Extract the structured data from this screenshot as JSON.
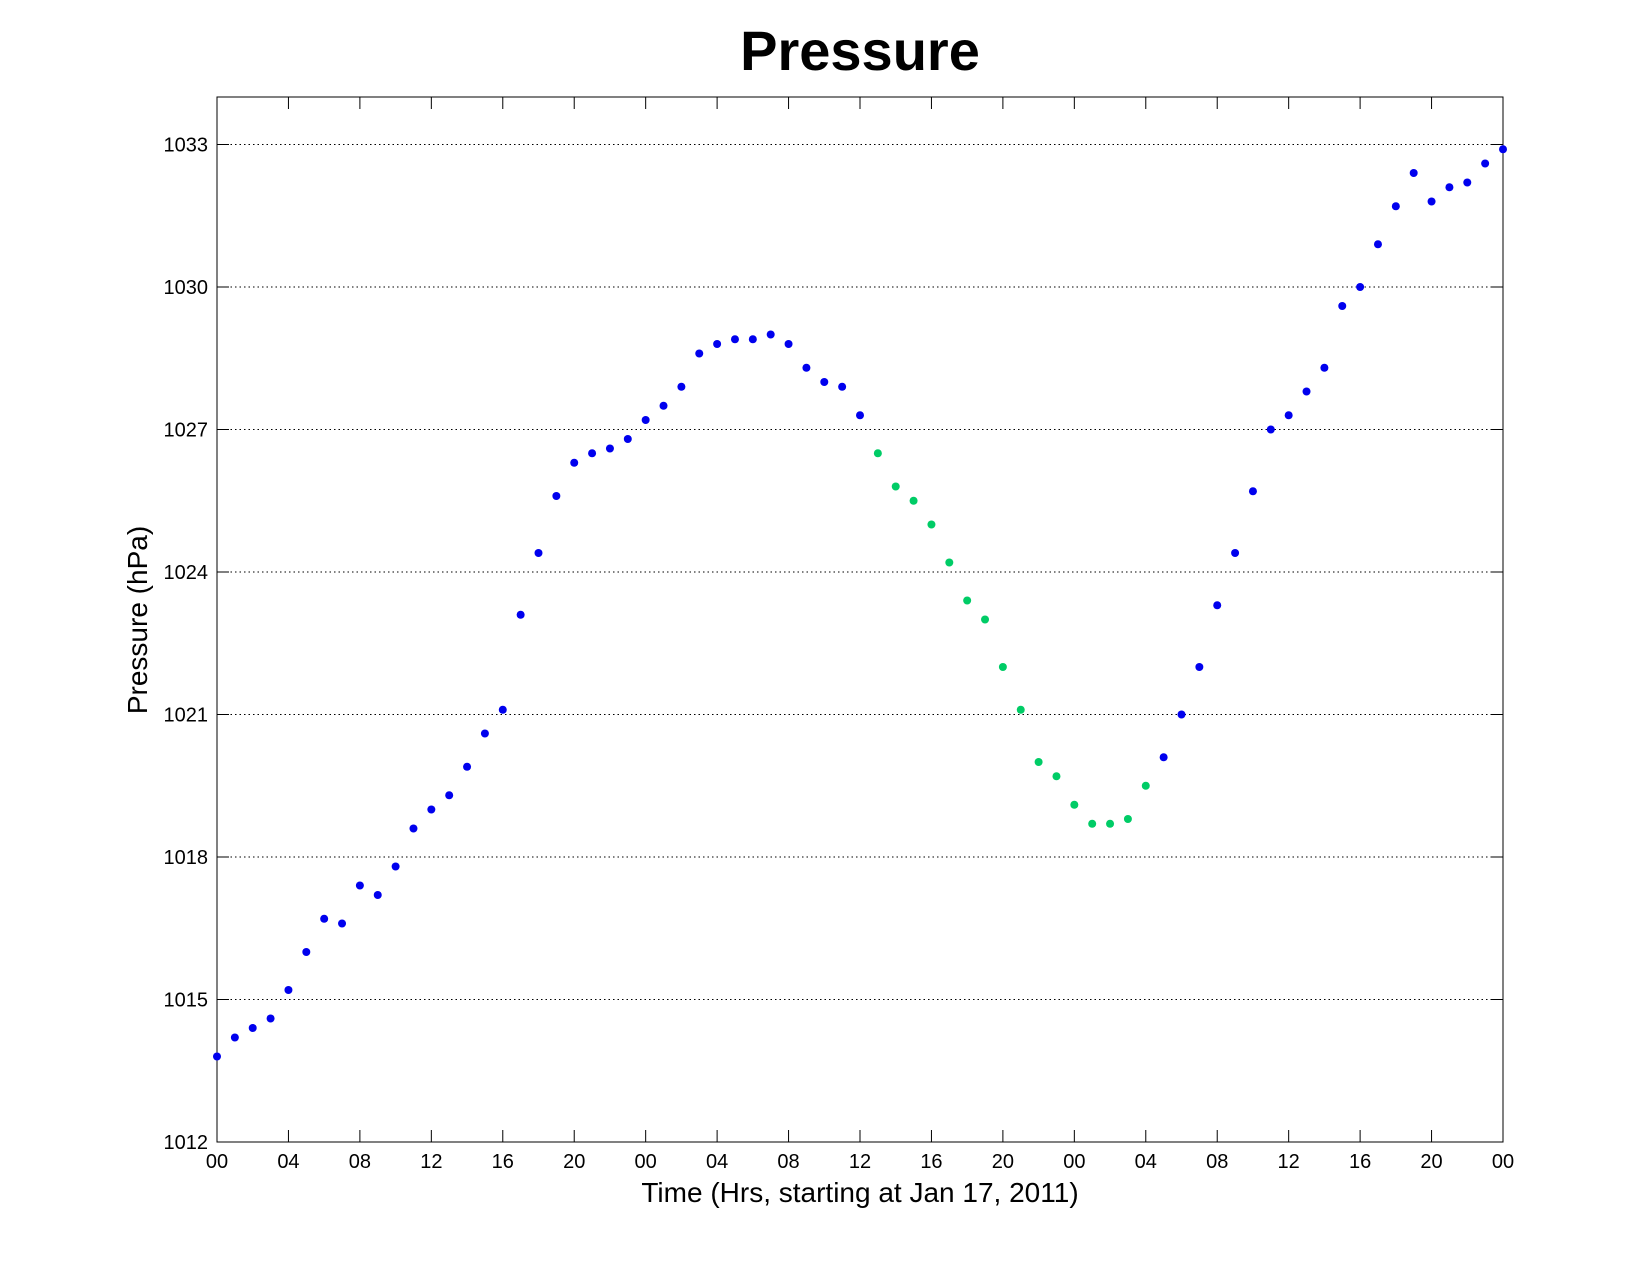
{
  "chart_data": {
    "type": "scatter",
    "title": "Pressure",
    "xlabel": "Time (Hrs, starting at Jan 17, 2011)",
    "ylabel": "Pressure (hPa)",
    "xlim": [
      0,
      72
    ],
    "ylim": [
      1012,
      1034
    ],
    "yticks": [
      1012,
      1015,
      1018,
      1021,
      1024,
      1027,
      1030,
      1033
    ],
    "xticks": [
      0,
      4,
      8,
      12,
      16,
      20,
      24,
      28,
      32,
      36,
      40,
      44,
      48,
      52,
      56,
      60,
      64,
      68,
      72
    ],
    "xtick_labels": [
      "00",
      "04",
      "08",
      "12",
      "16",
      "20",
      "00",
      "04",
      "08",
      "12",
      "16",
      "20",
      "00",
      "04",
      "08",
      "12",
      "16",
      "20",
      "00"
    ],
    "ygrid": true,
    "xgrid": false,
    "series": [
      {
        "color": "#0000ee",
        "points": [
          [
            0,
            1013.8
          ],
          [
            1,
            1014.2
          ],
          [
            2,
            1014.4
          ],
          [
            3,
            1014.6
          ],
          [
            4,
            1015.2
          ],
          [
            5,
            1016.0
          ],
          [
            6,
            1016.7
          ],
          [
            7,
            1016.6
          ],
          [
            8,
            1017.4
          ],
          [
            9,
            1017.2
          ],
          [
            10,
            1017.8
          ],
          [
            11,
            1018.6
          ],
          [
            12,
            1019.0
          ],
          [
            13,
            1019.3
          ],
          [
            14,
            1019.9
          ],
          [
            15,
            1020.6
          ],
          [
            16,
            1021.1
          ],
          [
            17,
            1023.1
          ],
          [
            18,
            1024.4
          ],
          [
            19,
            1025.6
          ],
          [
            20,
            1026.3
          ],
          [
            21,
            1026.5
          ],
          [
            22,
            1026.6
          ],
          [
            23,
            1026.8
          ],
          [
            24,
            1027.2
          ],
          [
            25,
            1027.5
          ],
          [
            26,
            1027.9
          ],
          [
            27,
            1028.6
          ],
          [
            28,
            1028.8
          ],
          [
            29,
            1028.9
          ],
          [
            30,
            1028.9
          ],
          [
            31,
            1029.0
          ],
          [
            32,
            1028.8
          ],
          [
            33,
            1028.3
          ],
          [
            34,
            1028.0
          ],
          [
            35,
            1027.9
          ],
          [
            36,
            1027.3
          ],
          [
            53,
            1020.1
          ],
          [
            54,
            1021.0
          ],
          [
            55,
            1022.0
          ],
          [
            56,
            1023.3
          ],
          [
            57,
            1024.4
          ],
          [
            58,
            1025.7
          ],
          [
            59,
            1027.0
          ],
          [
            60,
            1027.3
          ],
          [
            61,
            1027.8
          ],
          [
            62,
            1028.3
          ],
          [
            63,
            1029.6
          ],
          [
            64,
            1030.0
          ],
          [
            65,
            1030.9
          ],
          [
            66,
            1031.7
          ],
          [
            67,
            1032.4
          ],
          [
            68,
            1031.8
          ],
          [
            69,
            1032.1
          ],
          [
            70,
            1032.2
          ],
          [
            71,
            1032.6
          ],
          [
            72,
            1032.9
          ]
        ]
      },
      {
        "color": "#00cc66",
        "points": [
          [
            37,
            1026.5
          ],
          [
            38,
            1025.8
          ],
          [
            39,
            1025.5
          ],
          [
            40,
            1025.0
          ],
          [
            41,
            1024.2
          ],
          [
            42,
            1023.4
          ],
          [
            43,
            1023.0
          ],
          [
            44,
            1022.0
          ],
          [
            45,
            1021.1
          ],
          [
            46,
            1020.0
          ],
          [
            47,
            1019.7
          ],
          [
            48,
            1019.1
          ],
          [
            49,
            1018.7
          ],
          [
            50,
            1018.7
          ],
          [
            51,
            1018.8
          ],
          [
            52,
            1019.5
          ]
        ]
      }
    ]
  }
}
